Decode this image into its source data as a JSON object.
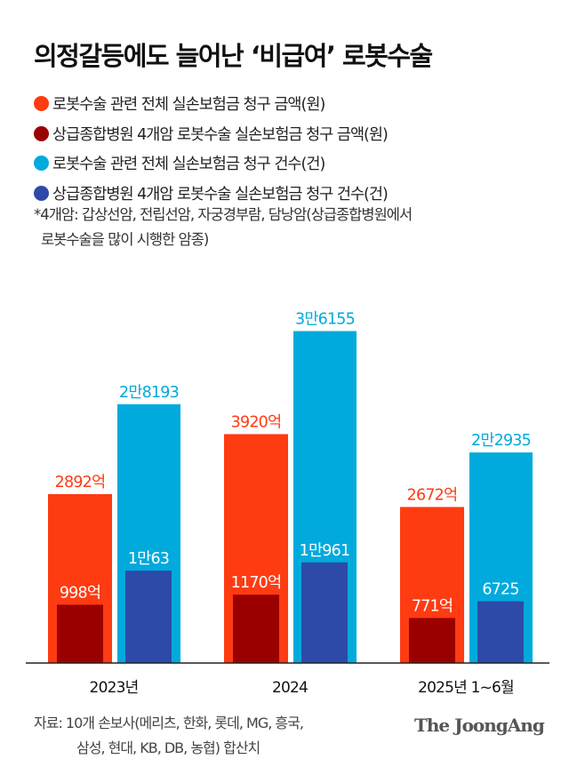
{
  "title": "의정갈등에도 늘어난 ‘비급여’ 로봇수술",
  "legend": [
    {
      "label": "로봇수술 관련 전체 실손보험금 청구 금액(원)",
      "color": "#ff3b12"
    },
    {
      "label": "상급종합병원 4개암 로봇수술 실손보험금 청구 금액(원)",
      "color": "#9b0000"
    },
    {
      "label": "로봇수술 관련 전체 실손보험금 청구 건수(건)",
      "color": "#00aadd"
    },
    {
      "label": "상급종합병원 4개암 로봇수술 실손보험금 청구 건수(건)",
      "color": "#2e4aa8"
    }
  ],
  "note": [
    "*4개암: 갑상선암, 전립선암, 자궁경부람, 담낭암(상급종합병원에서",
    "로봇수술을 많이 시행한 암종)"
  ],
  "source": [
    "자료: 10개 손보사(메리츠, 한화, 롯데, MG, 흥국,",
    "삼성, 현대, KB, DB, 농협) 합산치"
  ],
  "logo": "The JoongAng",
  "chart_data": {
    "type": "bar",
    "categories": [
      "2023년",
      "2024",
      "2025년 1~6월"
    ],
    "series": [
      {
        "name": "로봇수술 관련 전체 실손보험금 청구 금액(원)",
        "unit": "억",
        "values": [
          2892,
          3920,
          2672
        ],
        "labels": [
          "2892억",
          "3920억",
          "2672억"
        ],
        "color": "#ff3b12"
      },
      {
        "name": "상급종합병원 4개암 로봇수술 실손보험금 청구 금액(원)",
        "unit": "억",
        "values": [
          998,
          1170,
          771
        ],
        "labels": [
          "998억",
          "1170억",
          "771억"
        ],
        "color": "#9b0000"
      },
      {
        "name": "로봇수술 관련 전체 실손보험금 청구 건수(건)",
        "unit": "건",
        "values": [
          28193,
          36155,
          22935
        ],
        "labels": [
          "2만8193",
          "3만6155",
          "2만2935"
        ],
        "color": "#00aadd"
      },
      {
        "name": "상급종합병원 4개암 로봇수술 실손보험금 청구 건수(건)",
        "unit": "건",
        "values": [
          10063,
          10961,
          6725
        ],
        "labels": [
          "1만63",
          "1만961",
          "6725"
        ],
        "color": "#2e4aa8"
      }
    ],
    "grid": false,
    "legend_position": "top-left"
  }
}
